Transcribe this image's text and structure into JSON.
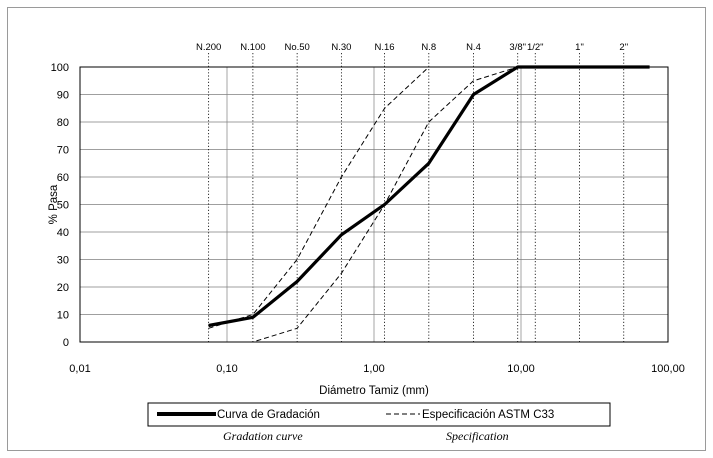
{
  "chart_data": {
    "type": "line",
    "xscale": "log",
    "xlim": [
      0.01,
      100
    ],
    "ylim": [
      0,
      100
    ],
    "grid": true,
    "xlabel": "Diámetro Tamiz (mm)",
    "ylabel": "% Pasa",
    "x_tick_labels": [
      "0,01",
      "0,10",
      "1,00",
      "10,00",
      "100,00"
    ],
    "y_tick_labels": [
      "0",
      "10",
      "20",
      "30",
      "40",
      "50",
      "60",
      "70",
      "80",
      "90",
      "100"
    ],
    "sieves": [
      {
        "label": "N.200",
        "size": 0.075
      },
      {
        "label": "N.100",
        "size": 0.15
      },
      {
        "label": "No.50",
        "size": 0.3
      },
      {
        "label": "N.30",
        "size": 0.6
      },
      {
        "label": "N.16",
        "size": 1.18
      },
      {
        "label": "N.8",
        "size": 2.36
      },
      {
        "label": "N.4",
        "size": 4.75
      },
      {
        "label": "3/8\"",
        "size": 9.5
      },
      {
        "label": "1/2\"",
        "size": 12.5
      },
      {
        "label": "1\"",
        "size": 25
      },
      {
        "label": "2\"",
        "size": 50
      }
    ],
    "series": [
      {
        "name": "Curva de Gradación",
        "style": "solid-thick",
        "x": [
          0.075,
          0.15,
          0.3,
          0.6,
          1.18,
          2.36,
          4.75,
          9.5,
          12.5,
          25,
          50,
          75
        ],
        "y": [
          6,
          9,
          22,
          39,
          50,
          65,
          90,
          100,
          100,
          100,
          100,
          100
        ]
      },
      {
        "name": "Especificación ASTM C33",
        "style": "dashed",
        "bound": "upper",
        "x": [
          0.075,
          0.15,
          0.3,
          0.6,
          1.18,
          2.36,
          4.75,
          9.5
        ],
        "y": [
          5,
          10,
          30,
          60,
          85,
          100,
          100,
          100
        ]
      },
      {
        "name": "Especificación ASTM C33",
        "style": "dashed",
        "bound": "lower",
        "x": [
          0.075,
          0.15,
          0.3,
          0.6,
          1.18,
          2.36,
          4.75,
          9.5
        ],
        "y": [
          0,
          0,
          5,
          25,
          50,
          80,
          95,
          100
        ]
      }
    ],
    "legend": {
      "position": "bottom",
      "items": [
        {
          "label": "Curva de Gradación",
          "sublabel": "Gradation curve",
          "style": "solid-thick"
        },
        {
          "label": "Especificación ASTM C33",
          "sublabel": "Specification",
          "style": "dashed"
        }
      ]
    },
    "colors": {
      "line": "#000000",
      "grid": "#7f7f7f",
      "sieve_grid": "#000000"
    }
  }
}
